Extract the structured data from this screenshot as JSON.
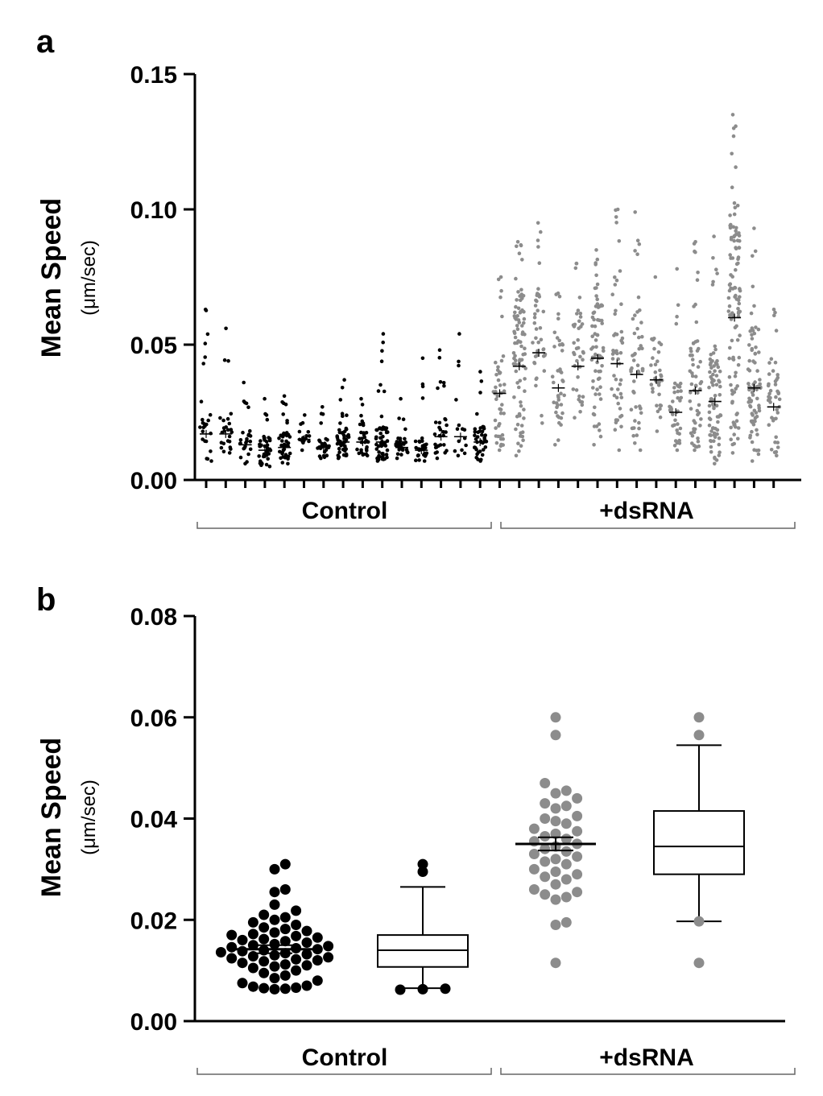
{
  "chart_data": [
    {
      "panel": "a",
      "type": "scatter",
      "ylabel": "Mean Speed",
      "ylabel_unit": "(μm/sec)",
      "ylim": [
        0,
        0.15
      ],
      "yticks": [
        "0.00",
        "0.05",
        "0.10",
        "0.15"
      ],
      "groups": [
        "Control",
        "+dsRNA"
      ],
      "colors": {
        "Control": "#000000",
        "+dsRNA": "#8c8c8c"
      },
      "series": [
        {
          "group": "Control",
          "index": 1,
          "mean": 0.017,
          "min": 0.007,
          "max": 0.063,
          "n": 25
        },
        {
          "group": "Control",
          "index": 2,
          "mean": 0.017,
          "min": 0.01,
          "max": 0.056,
          "n": 25
        },
        {
          "group": "Control",
          "index": 3,
          "mean": 0.013,
          "min": 0.006,
          "max": 0.036,
          "n": 25
        },
        {
          "group": "Control",
          "index": 4,
          "mean": 0.011,
          "min": 0.005,
          "max": 0.03,
          "n": 40
        },
        {
          "group": "Control",
          "index": 5,
          "mean": 0.012,
          "min": 0.006,
          "max": 0.031,
          "n": 40
        },
        {
          "group": "Control",
          "index": 6,
          "mean": 0.015,
          "min": 0.011,
          "max": 0.024,
          "n": 15
        },
        {
          "group": "Control",
          "index": 7,
          "mean": 0.012,
          "min": 0.008,
          "max": 0.027,
          "n": 30
        },
        {
          "group": "Control",
          "index": 8,
          "mean": 0.014,
          "min": 0.008,
          "max": 0.037,
          "n": 45
        },
        {
          "group": "Control",
          "index": 9,
          "mean": 0.014,
          "min": 0.009,
          "max": 0.03,
          "n": 30
        },
        {
          "group": "Control",
          "index": 10,
          "mean": 0.014,
          "min": 0.007,
          "max": 0.054,
          "n": 55
        },
        {
          "group": "Control",
          "index": 11,
          "mean": 0.012,
          "min": 0.008,
          "max": 0.03,
          "n": 30
        },
        {
          "group": "Control",
          "index": 12,
          "mean": 0.011,
          "min": 0.007,
          "max": 0.045,
          "n": 30
        },
        {
          "group": "Control",
          "index": 13,
          "mean": 0.016,
          "min": 0.008,
          "max": 0.048,
          "n": 30
        },
        {
          "group": "Control",
          "index": 14,
          "mean": 0.016,
          "min": 0.009,
          "max": 0.054,
          "n": 15
        },
        {
          "group": "Control",
          "index": 15,
          "mean": 0.014,
          "min": 0.007,
          "max": 0.04,
          "n": 40
        },
        {
          "group": "+dsRNA",
          "index": 16,
          "mean": 0.032,
          "min": 0.011,
          "max": 0.075,
          "n": 45
        },
        {
          "group": "+dsRNA",
          "index": 17,
          "mean": 0.042,
          "min": 0.009,
          "max": 0.088,
          "n": 90
        },
        {
          "group": "+dsRNA",
          "index": 18,
          "mean": 0.047,
          "min": 0.021,
          "max": 0.095,
          "n": 40
        },
        {
          "group": "+dsRNA",
          "index": 19,
          "mean": 0.034,
          "min": 0.013,
          "max": 0.069,
          "n": 40
        },
        {
          "group": "+dsRNA",
          "index": 20,
          "mean": 0.042,
          "min": 0.023,
          "max": 0.08,
          "n": 40
        },
        {
          "group": "+dsRNA",
          "index": 21,
          "mean": 0.045,
          "min": 0.013,
          "max": 0.085,
          "n": 70
        },
        {
          "group": "+dsRNA",
          "index": 22,
          "mean": 0.043,
          "min": 0.011,
          "max": 0.1,
          "n": 50
        },
        {
          "group": "+dsRNA",
          "index": 23,
          "mean": 0.039,
          "min": 0.011,
          "max": 0.099,
          "n": 50
        },
        {
          "group": "+dsRNA",
          "index": 24,
          "mean": 0.037,
          "min": 0.018,
          "max": 0.075,
          "n": 35
        },
        {
          "group": "+dsRNA",
          "index": 25,
          "mean": 0.025,
          "min": 0.011,
          "max": 0.078,
          "n": 40
        },
        {
          "group": "+dsRNA",
          "index": 26,
          "mean": 0.033,
          "min": 0.011,
          "max": 0.088,
          "n": 60
        },
        {
          "group": "+dsRNA",
          "index": 27,
          "mean": 0.029,
          "min": 0.006,
          "max": 0.09,
          "n": 80
        },
        {
          "group": "+dsRNA",
          "index": 28,
          "mean": 0.06,
          "min": 0.01,
          "max": 0.135,
          "n": 110
        },
        {
          "group": "+dsRNA",
          "index": 29,
          "mean": 0.034,
          "min": 0.007,
          "max": 0.093,
          "n": 80
        },
        {
          "group": "+dsRNA",
          "index": 30,
          "mean": 0.027,
          "min": 0.009,
          "max": 0.063,
          "n": 45
        }
      ]
    },
    {
      "panel": "b",
      "type": "scatter+box",
      "ylabel": "Mean Speed",
      "ylabel_unit": "(μm/sec)",
      "ylim": [
        0,
        0.08
      ],
      "yticks": [
        "0.00",
        "0.02",
        "0.04",
        "0.06",
        "0.08"
      ],
      "groups": [
        "Control",
        "+dsRNA"
      ],
      "scatter": [
        {
          "group": "Control",
          "color": "#000000",
          "mean": 0.0142,
          "sem": 0.0008,
          "values": [
            0.031,
            0.03,
            0.026,
            0.0255,
            0.023,
            0.0218,
            0.021,
            0.0205,
            0.02,
            0.0195,
            0.019,
            0.0185,
            0.0182,
            0.0178,
            0.0175,
            0.0172,
            0.017,
            0.0168,
            0.0165,
            0.0162,
            0.016,
            0.0158,
            0.0155,
            0.0152,
            0.015,
            0.0148,
            0.0146,
            0.0144,
            0.0142,
            0.014,
            0.0138,
            0.0136,
            0.0134,
            0.0132,
            0.013,
            0.0128,
            0.0126,
            0.0124,
            0.0122,
            0.012,
            0.0118,
            0.0115,
            0.0112,
            0.011,
            0.0108,
            0.0105,
            0.01,
            0.0095,
            0.009,
            0.0085,
            0.008,
            0.0075,
            0.007,
            0.0068,
            0.0066,
            0.0065,
            0.0064,
            0.0063
          ]
        },
        {
          "group": "+dsRNA",
          "color": "#8c8c8c",
          "mean": 0.035,
          "sem": 0.0013,
          "values": [
            0.06,
            0.0565,
            0.047,
            0.0455,
            0.045,
            0.044,
            0.043,
            0.0425,
            0.042,
            0.0405,
            0.04,
            0.0395,
            0.039,
            0.038,
            0.0375,
            0.037,
            0.0365,
            0.036,
            0.0355,
            0.035,
            0.0345,
            0.034,
            0.0335,
            0.033,
            0.0325,
            0.032,
            0.0315,
            0.031,
            0.03,
            0.0295,
            0.029,
            0.0285,
            0.028,
            0.027,
            0.026,
            0.0255,
            0.025,
            0.0245,
            0.024,
            0.0195,
            0.019,
            0.0115
          ]
        }
      ],
      "boxes": [
        {
          "group": "Control",
          "whisker_low": 0.0065,
          "q1": 0.0107,
          "median": 0.014,
          "q3": 0.017,
          "whisker_high": 0.0265,
          "outliers": [
            0.031,
            0.0295,
            0.0062,
            0.0063,
            0.0064
          ],
          "outlier_color": "#000000"
        },
        {
          "group": "+dsRNA",
          "whisker_low": 0.0197,
          "q1": 0.029,
          "median": 0.0345,
          "q3": 0.0415,
          "whisker_high": 0.0545,
          "outliers": [
            0.06,
            0.0565,
            0.0197,
            0.0115
          ],
          "outlier_color": "#8c8c8c"
        }
      ]
    }
  ],
  "labels": {
    "a": {
      "letter": "a",
      "ylabel": "Mean Speed",
      "unit": "(μm/sec)",
      "group1": "Control",
      "group2": "+dsRNA"
    },
    "b": {
      "letter": "b",
      "ylabel": "Mean Speed",
      "unit": "(μm/sec)",
      "group1": "Control",
      "group2": "+dsRNA"
    }
  }
}
